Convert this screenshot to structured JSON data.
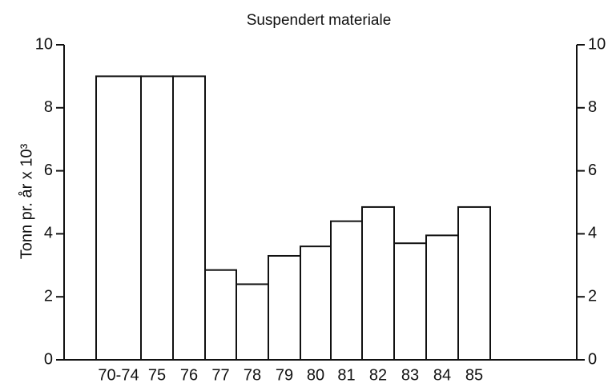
{
  "chart_data": {
    "type": "bar",
    "title": "Suspendert materiale",
    "ylabel": "Tonn pr. år x 10³",
    "categories": [
      "70-74",
      "75",
      "76",
      "77",
      "78",
      "79",
      "80",
      "81",
      "82",
      "83",
      "84",
      "85"
    ],
    "values": [
      9,
      9,
      9,
      2.85,
      2.4,
      3.3,
      3.6,
      4.4,
      4.85,
      3.7,
      3.95,
      4.85
    ],
    "color": "#ffffff",
    "ylim": [
      0,
      10
    ],
    "yticks": [
      0,
      2,
      4,
      6,
      8,
      10
    ],
    "y2lim": [
      0,
      10
    ],
    "y2ticks": [
      0,
      2,
      4,
      6,
      8,
      10
    ]
  }
}
